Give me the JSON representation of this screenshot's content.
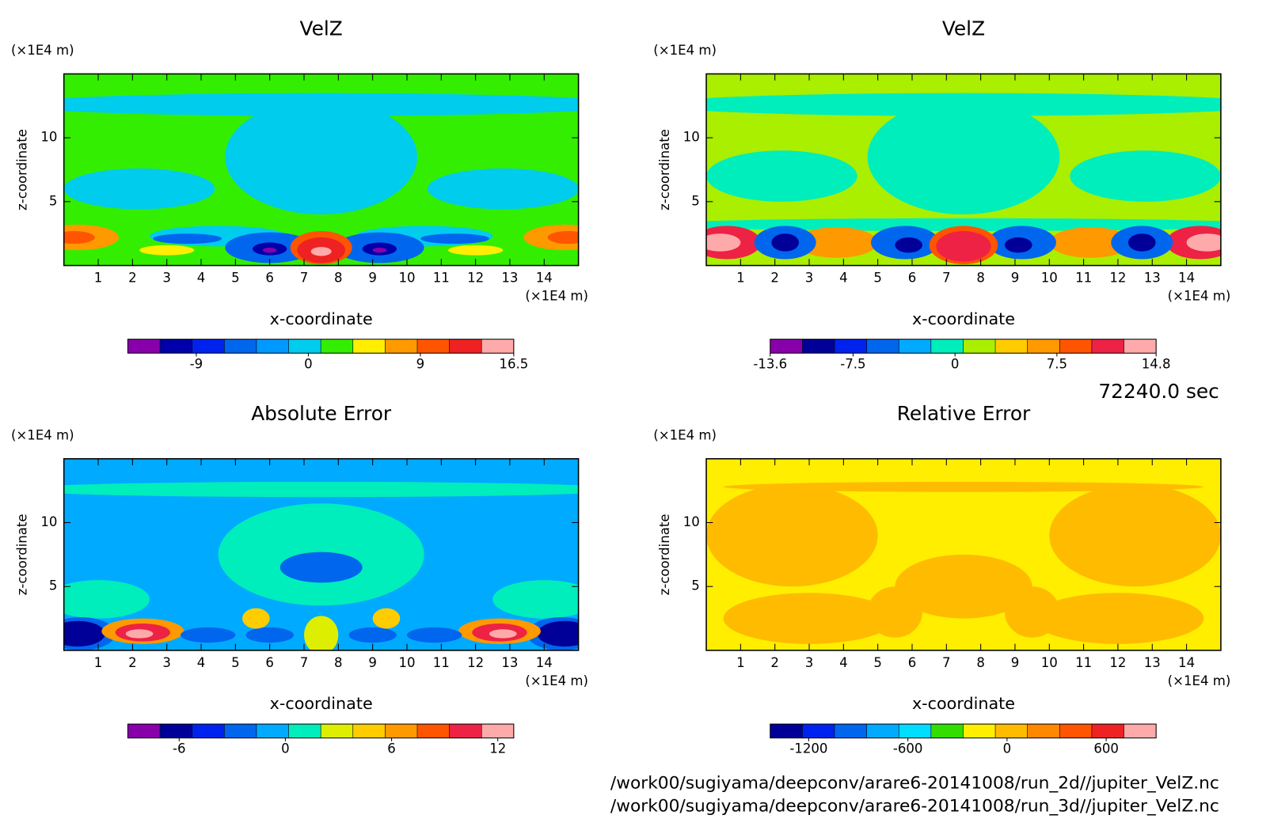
{
  "chart_data": [
    {
      "type": "contour",
      "title": "VelZ",
      "xlabel": "x-coordinate",
      "ylabel": "z-coordinate",
      "xunit": "(×1E4 m)",
      "yunit": "(×1E4 m)",
      "xlim": [
        0,
        15
      ],
      "ylim": [
        0,
        15
      ],
      "xticks": [
        1,
        2,
        3,
        4,
        5,
        6,
        7,
        8,
        9,
        10,
        11,
        12,
        13,
        14
      ],
      "yticks": [
        5,
        10
      ],
      "colorbar": {
        "colors": [
          "#8800aa",
          "#0000aa",
          "#0022ee",
          "#0066ee",
          "#0099ff",
          "#00ccee",
          "#33ee00",
          "#ffee00",
          "#ff9900",
          "#ff5500",
          "#ee2222",
          "#ffaaaa"
        ],
        "clim": [
          -14.5,
          16.5
        ],
        "ticks": [
          -9,
          0,
          9,
          16.5
        ]
      }
    },
    {
      "type": "contour",
      "title": "VelZ",
      "xlabel": "x-coordinate",
      "ylabel": "z-coordinate",
      "xunit": "(×1E4 m)",
      "yunit": "(×1E4 m)",
      "xlim": [
        0,
        15
      ],
      "ylim": [
        0,
        15
      ],
      "xticks": [
        1,
        2,
        3,
        4,
        5,
        6,
        7,
        8,
        9,
        10,
        11,
        12,
        13,
        14
      ],
      "yticks": [
        5,
        10
      ],
      "colorbar": {
        "colors": [
          "#8800aa",
          "#000099",
          "#0022ee",
          "#0066ee",
          "#00aaff",
          "#00eebb",
          "#aaee00",
          "#ffcc00",
          "#ff9900",
          "#ff5500",
          "#ee2244",
          "#ffaaaa"
        ],
        "clim": [
          -13.6,
          14.8
        ],
        "ticks": [
          -13.6,
          -7.5,
          0,
          7.5,
          14.8
        ]
      }
    },
    {
      "type": "contour",
      "title": "Absolute Error",
      "xlabel": "x-coordinate",
      "ylabel": "z-coordinate",
      "xunit": "(×1E4 m)",
      "yunit": "(×1E4 m)",
      "xlim": [
        0,
        15
      ],
      "ylim": [
        0,
        15
      ],
      "xticks": [
        1,
        2,
        3,
        4,
        5,
        6,
        7,
        8,
        9,
        10,
        11,
        12,
        13,
        14
      ],
      "yticks": [
        5,
        10
      ],
      "colorbar": {
        "colors": [
          "#8800aa",
          "#000099",
          "#0022ee",
          "#0066ee",
          "#00aaff",
          "#00eebb",
          "#ddee00",
          "#ffcc00",
          "#ff9900",
          "#ff5500",
          "#ee2244",
          "#ffaaaa"
        ],
        "clim": [
          -8.9,
          12.9
        ],
        "ticks": [
          -6,
          0,
          6,
          12
        ]
      }
    },
    {
      "type": "contour",
      "title": "Relative Error",
      "xlabel": "x-coordinate",
      "ylabel": "z-coordinate",
      "xunit": "(×1E4 m)",
      "yunit": "(×1E4 m)",
      "xlim": [
        0,
        15
      ],
      "ylim": [
        0,
        15
      ],
      "xticks": [
        1,
        2,
        3,
        4,
        5,
        6,
        7,
        8,
        9,
        10,
        11,
        12,
        13,
        14
      ],
      "yticks": [
        5,
        10
      ],
      "colorbar": {
        "colors": [
          "#000099",
          "#0022ee",
          "#0066ee",
          "#00aaff",
          "#00ddff",
          "#33dd00",
          "#ffee00",
          "#ffbb00",
          "#ff8800",
          "#ff5500",
          "#ee2222",
          "#ffaaaa"
        ],
        "clim": [
          -1433,
          902
        ],
        "ticks": [
          -1200,
          -600,
          0,
          600
        ]
      }
    }
  ],
  "time_label": "72240.0 sec",
  "files": [
    "/work00/sugiyama/deepconv/arare6-20141008/run_2d//jupiter_VelZ.nc",
    "/work00/sugiyama/deepconv/arare6-20141008/run_3d//jupiter_VelZ.nc"
  ]
}
